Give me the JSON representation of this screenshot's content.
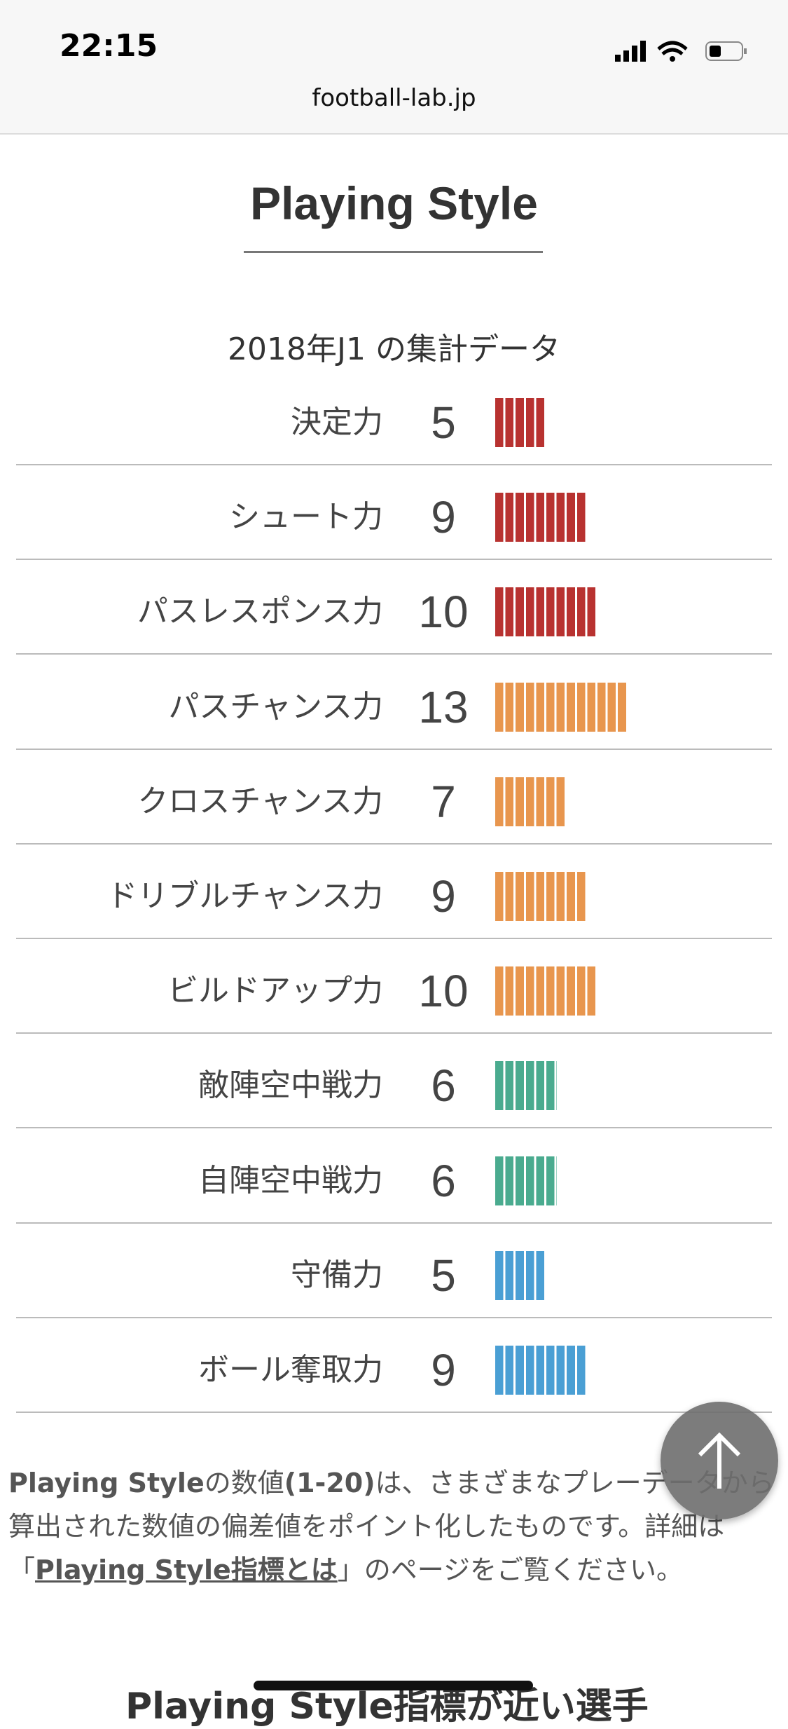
{
  "status_bar": {
    "time": "22:15",
    "url": "football-lab.jp"
  },
  "title": "Playing Style",
  "subtitle": "2018年J1 の集計データ",
  "rows": [
    {
      "label": "決定力",
      "value": 5,
      "color": "#b83230"
    },
    {
      "label": "シュート力",
      "value": 9,
      "color": "#b83230"
    },
    {
      "label": "パスレスポンス力",
      "value": 10,
      "color": "#b83230"
    },
    {
      "label": "パスチャンス力",
      "value": 13,
      "color": "#e8964e"
    },
    {
      "label": "クロスチャンス力",
      "value": 7,
      "color": "#e8964e"
    },
    {
      "label": "ドリブルチャンス力",
      "value": 9,
      "color": "#e8964e"
    },
    {
      "label": "ビルドアップ力",
      "value": 10,
      "color": "#e8964e"
    },
    {
      "label": "敵陣空中戦力",
      "value": 6,
      "color": "#4aab8f"
    },
    {
      "label": "自陣空中戦力",
      "value": 6,
      "color": "#4aab8f"
    },
    {
      "label": "守備力",
      "value": 5,
      "color": "#4a9fd4"
    },
    {
      "label": "ボール奪取力",
      "value": 9,
      "color": "#4a9fd4"
    }
  ],
  "footnote": {
    "part1": "Playing Style",
    "part2": "の数値",
    "part3": "(1-20)",
    "part4": "は、さまざまなプレーデータから算出された数値の偏差値をポイント化したものです。詳細は「",
    "link": "Playing Style指標とは",
    "part5": "」のページをご覧ください。"
  },
  "next_heading": "Playing Style指標が近い選手"
}
